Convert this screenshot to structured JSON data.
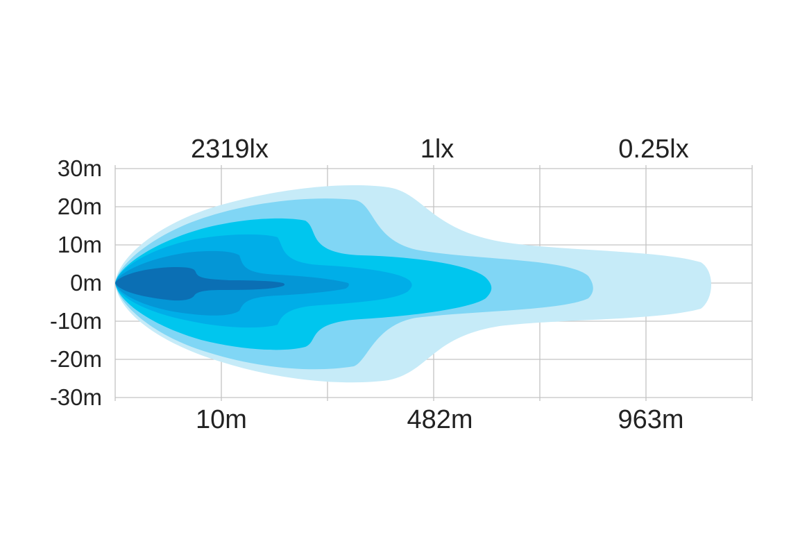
{
  "chart_data": {
    "type": "heatmap",
    "title": "",
    "xlabel": "",
    "ylabel": "",
    "y_ticks": [
      "30m",
      "20m",
      "10m",
      "0m",
      "-10m",
      "-20m",
      "-30m"
    ],
    "ylim": [
      -30,
      30
    ],
    "x_gridlines": 6,
    "grid": true,
    "top_labels": [
      "2319lx",
      "1lx",
      "0.25lx"
    ],
    "bottom_labels": [
      "10m",
      "482m",
      "963m"
    ],
    "zone_colors": [
      "#c6ebf8",
      "#80d6f5",
      "#00c6ee",
      "#00aee8",
      "#0496d6",
      "#0b6fb4"
    ]
  }
}
